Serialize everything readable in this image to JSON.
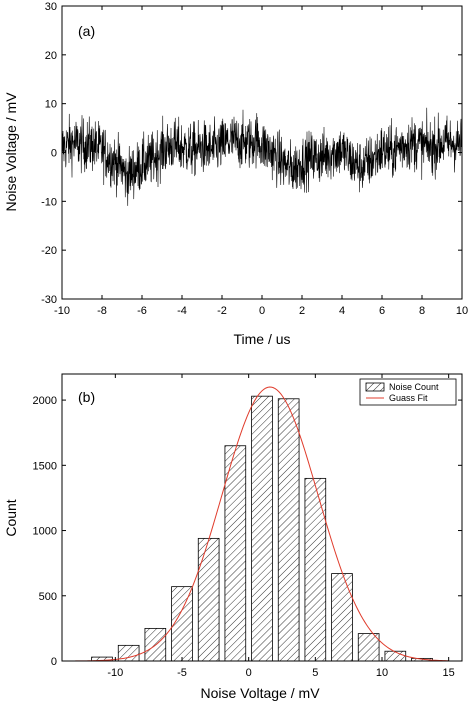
{
  "chart_data": [
    {
      "type": "line",
      "panel_label": "(a)",
      "xlabel": "Time / us",
      "ylabel": "Noise Voltage / mV",
      "xlim": [
        -10,
        10
      ],
      "ylim": [
        -30,
        30
      ],
      "xticks": [
        -10,
        -8,
        -6,
        -4,
        -2,
        0,
        2,
        4,
        6,
        8,
        10
      ],
      "yticks": [
        -30,
        -20,
        -10,
        0,
        10,
        20,
        30
      ],
      "series": [
        {
          "color": "#000000",
          "envelope": {
            "x": [
              -10,
              -9.5,
              -9,
              -8.5,
              -8,
              -7.5,
              -7,
              -6.8,
              -6.5,
              -6,
              -5.5,
              -5,
              -4.5,
              -4,
              -3.5,
              -3,
              -2.5,
              -2,
              -1.5,
              -1,
              -0.5,
              -0.3,
              0,
              0.5,
              1,
              1.5,
              2,
              2.5,
              3,
              3.5,
              4,
              4.5,
              5,
              5.5,
              6,
              6.5,
              7,
              7.5,
              8,
              8.5,
              9,
              9.5,
              10
            ],
            "baseline": [
              1,
              2,
              1.5,
              1.5,
              0.5,
              -1.5,
              -3,
              -5,
              -4,
              -2.5,
              -1.5,
              0.5,
              1.5,
              1,
              0.5,
              1,
              0.5,
              1.5,
              2.5,
              2,
              2,
              3,
              1.5,
              0,
              -2,
              -3.5,
              -2,
              -1,
              -1,
              0,
              0.5,
              -2,
              -3,
              -1.5,
              0.5,
              0,
              1.5,
              2,
              1.5,
              1,
              2,
              2,
              1.5
            ],
            "amplitude": 4.5,
            "y_max": 15,
            "y_min": -13
          }
        }
      ]
    },
    {
      "type": "bar",
      "panel_label": "(b)",
      "xlabel": "Noise Voltage / mV",
      "ylabel": "Count",
      "xlim": [
        -14,
        16
      ],
      "ylim": [
        0,
        2200
      ],
      "xticks": [
        -10,
        -5,
        0,
        5,
        10,
        15
      ],
      "yticks": [
        0,
        500,
        1000,
        1500,
        2000
      ],
      "bin_width": 2,
      "bin_centers": [
        -11,
        -9,
        -7,
        -5,
        -3,
        -1,
        1,
        3,
        5,
        7,
        9,
        11,
        13
      ],
      "values": [
        30,
        120,
        250,
        570,
        940,
        1650,
        2030,
        2010,
        1400,
        670,
        210,
        75,
        20
      ],
      "fit": {
        "type": "gaussian",
        "amplitude": 2100,
        "mean": 1.6,
        "sigma": 3.6,
        "color": "#e03c2c"
      },
      "legend": [
        "Noise Count",
        "Guass Fit"
      ],
      "legend_position": "top-right"
    }
  ]
}
